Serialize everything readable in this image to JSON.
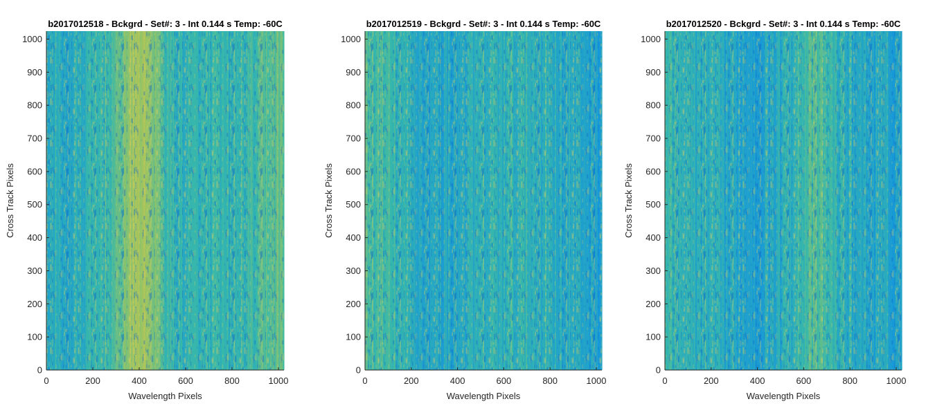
{
  "chart_data": [
    {
      "type": "heatmap",
      "title": "b2017012518 - Bckgrd - Set#: 3 - Int 0.144 s Temp: -60C",
      "xlabel": "Wavelength Pixels",
      "ylabel": "Cross Track Pixels",
      "xlim": [
        0,
        1024
      ],
      "ylim": [
        0,
        1024
      ],
      "xticks": [
        0,
        200,
        400,
        600,
        800,
        1000
      ],
      "yticks": [
        0,
        100,
        200,
        300,
        400,
        500,
        600,
        700,
        800,
        900,
        1000
      ],
      "colormap": "parula",
      "column_intensity_profile": {
        "x": [
          0,
          100,
          200,
          300,
          350,
          400,
          450,
          500,
          550,
          600,
          700,
          800,
          900,
          1000,
          1024
        ],
        "level": [
          0.42,
          0.38,
          0.45,
          0.55,
          0.72,
          0.8,
          0.74,
          0.55,
          0.46,
          0.44,
          0.46,
          0.45,
          0.5,
          0.62,
          0.6
        ]
      }
    },
    {
      "type": "heatmap",
      "title": "b2017012519 - Bckgrd - Set#: 3 - Int 0.144 s Temp: -60C",
      "xlabel": "Wavelength Pixels",
      "ylabel": "Cross Track Pixels",
      "xlim": [
        0,
        1024
      ],
      "ylim": [
        0,
        1024
      ],
      "xticks": [
        0,
        200,
        400,
        600,
        800,
        1000
      ],
      "yticks": [
        0,
        100,
        200,
        300,
        400,
        500,
        600,
        700,
        800,
        900,
        1000
      ],
      "colormap": "parula",
      "column_intensity_profile": {
        "x": [
          0,
          100,
          200,
          300,
          400,
          500,
          600,
          700,
          800,
          900,
          1000,
          1024
        ],
        "level": [
          0.55,
          0.5,
          0.4,
          0.36,
          0.38,
          0.42,
          0.44,
          0.45,
          0.42,
          0.38,
          0.34,
          0.32
        ]
      }
    },
    {
      "type": "heatmap",
      "title": "b2017012520 - Bckgrd - Set#: 3 - Int 0.144 s Temp: -60C",
      "xlabel": "Wavelength Pixels",
      "ylabel": "Cross Track Pixels",
      "xlim": [
        0,
        1024
      ],
      "ylim": [
        0,
        1024
      ],
      "xticks": [
        0,
        200,
        400,
        600,
        800,
        1000
      ],
      "yticks": [
        0,
        100,
        200,
        300,
        400,
        500,
        600,
        700,
        800,
        900,
        1000
      ],
      "colormap": "parula",
      "column_intensity_profile": {
        "x": [
          0,
          100,
          200,
          300,
          400,
          500,
          600,
          650,
          700,
          800,
          900,
          1000,
          1024
        ],
        "level": [
          0.5,
          0.42,
          0.4,
          0.36,
          0.34,
          0.4,
          0.52,
          0.56,
          0.5,
          0.4,
          0.36,
          0.34,
          0.33
        ]
      }
    }
  ],
  "colors": {
    "parula_low": "#1a7fd6",
    "parula_mid": "#3fb8a8",
    "parula_high": "#d9c24a",
    "axis": "#262626"
  }
}
